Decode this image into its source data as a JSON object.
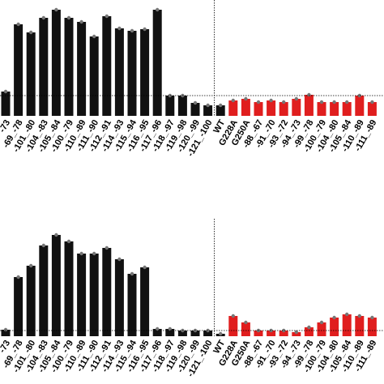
{
  "charts": [
    {
      "chart_data": {
        "type": "bar",
        "categories": [
          "-73",
          "-69_-78",
          "-101_-80",
          "-104_-83",
          "-105_-84",
          "-100_-79",
          "-110_-89",
          "-111_-90",
          "-112_-91",
          "-114_-93",
          "-115_-94",
          "-116_-95",
          "-117_-96",
          "-118_-97",
          "-119_-98",
          "-120_-99",
          "-121_-100",
          "WT",
          "G228A",
          "G250A",
          "-88_-67",
          "-91_-70",
          "-93_-72",
          "-94_-73",
          "-99_-78",
          "-100_-79",
          "-104_-80",
          "-105_-84",
          "-110_-89",
          "-111_-89"
        ],
        "values": [
          30,
          113,
          103,
          121,
          131,
          121,
          116,
          98,
          123,
          108,
          105,
          107,
          131,
          25,
          25,
          16,
          13,
          13,
          19,
          21,
          17,
          19,
          17,
          21,
          26,
          17,
          17,
          17,
          25,
          17
        ],
        "bar_colors": [
          "#111",
          "#111",
          "#111",
          "#111",
          "#111",
          "#111",
          "#111",
          "#111",
          "#111",
          "#111",
          "#111",
          "#111",
          "#111",
          "#111",
          "#111",
          "#111",
          "#111",
          "#111",
          "#e01e1e",
          "#e01e1e",
          "#e01e1e",
          "#e01e1e",
          "#e01e1e",
          "#e01e1e",
          "#e01e1e",
          "#e01e1e",
          "#e01e1e",
          "#e01e1e",
          "#e01e1e",
          "#e01e1e"
        ],
        "reference_line": 25,
        "ylim": [
          0,
          140
        ]
      }
    },
    {
      "chart_data": {
        "type": "bar",
        "categories": [
          "-73",
          "-69_-78",
          "-101_-80",
          "-104_-83",
          "-105_-84",
          "-100_-79",
          "-110_-89",
          "-111_-90",
          "-112_-91",
          "-114_-93",
          "-115_-94",
          "-116_-95",
          "-117_-96",
          "-118_-97",
          "-119_-98",
          "-120_-99",
          "-121_-100",
          "WT",
          "G228A",
          "G250A",
          "-88_-67",
          "-91_-70",
          "-93_-72",
          "-94_-73",
          "-99_-78",
          "-100_-79",
          "-104_-80",
          "-105_-84",
          "-110_-89",
          "-111_-89"
        ],
        "values": [
          8,
          73,
          87,
          112,
          125,
          117,
          102,
          102,
          109,
          95,
          77,
          85,
          9,
          9,
          7,
          7,
          7,
          3,
          25,
          17,
          7,
          7,
          7,
          5,
          11,
          17,
          23,
          27,
          25,
          23
        ],
        "bar_colors": [
          "#111",
          "#111",
          "#111",
          "#111",
          "#111",
          "#111",
          "#111",
          "#111",
          "#111",
          "#111",
          "#111",
          "#111",
          "#111",
          "#111",
          "#111",
          "#111",
          "#111",
          "#111",
          "#e01e1e",
          "#e01e1e",
          "#e01e1e",
          "#e01e1e",
          "#e01e1e",
          "#e01e1e",
          "#e01e1e",
          "#e01e1e",
          "#e01e1e",
          "#e01e1e",
          "#e01e1e",
          "#e01e1e"
        ],
        "reference_line": 7,
        "ylim": [
          0,
          140
        ]
      }
    }
  ]
}
